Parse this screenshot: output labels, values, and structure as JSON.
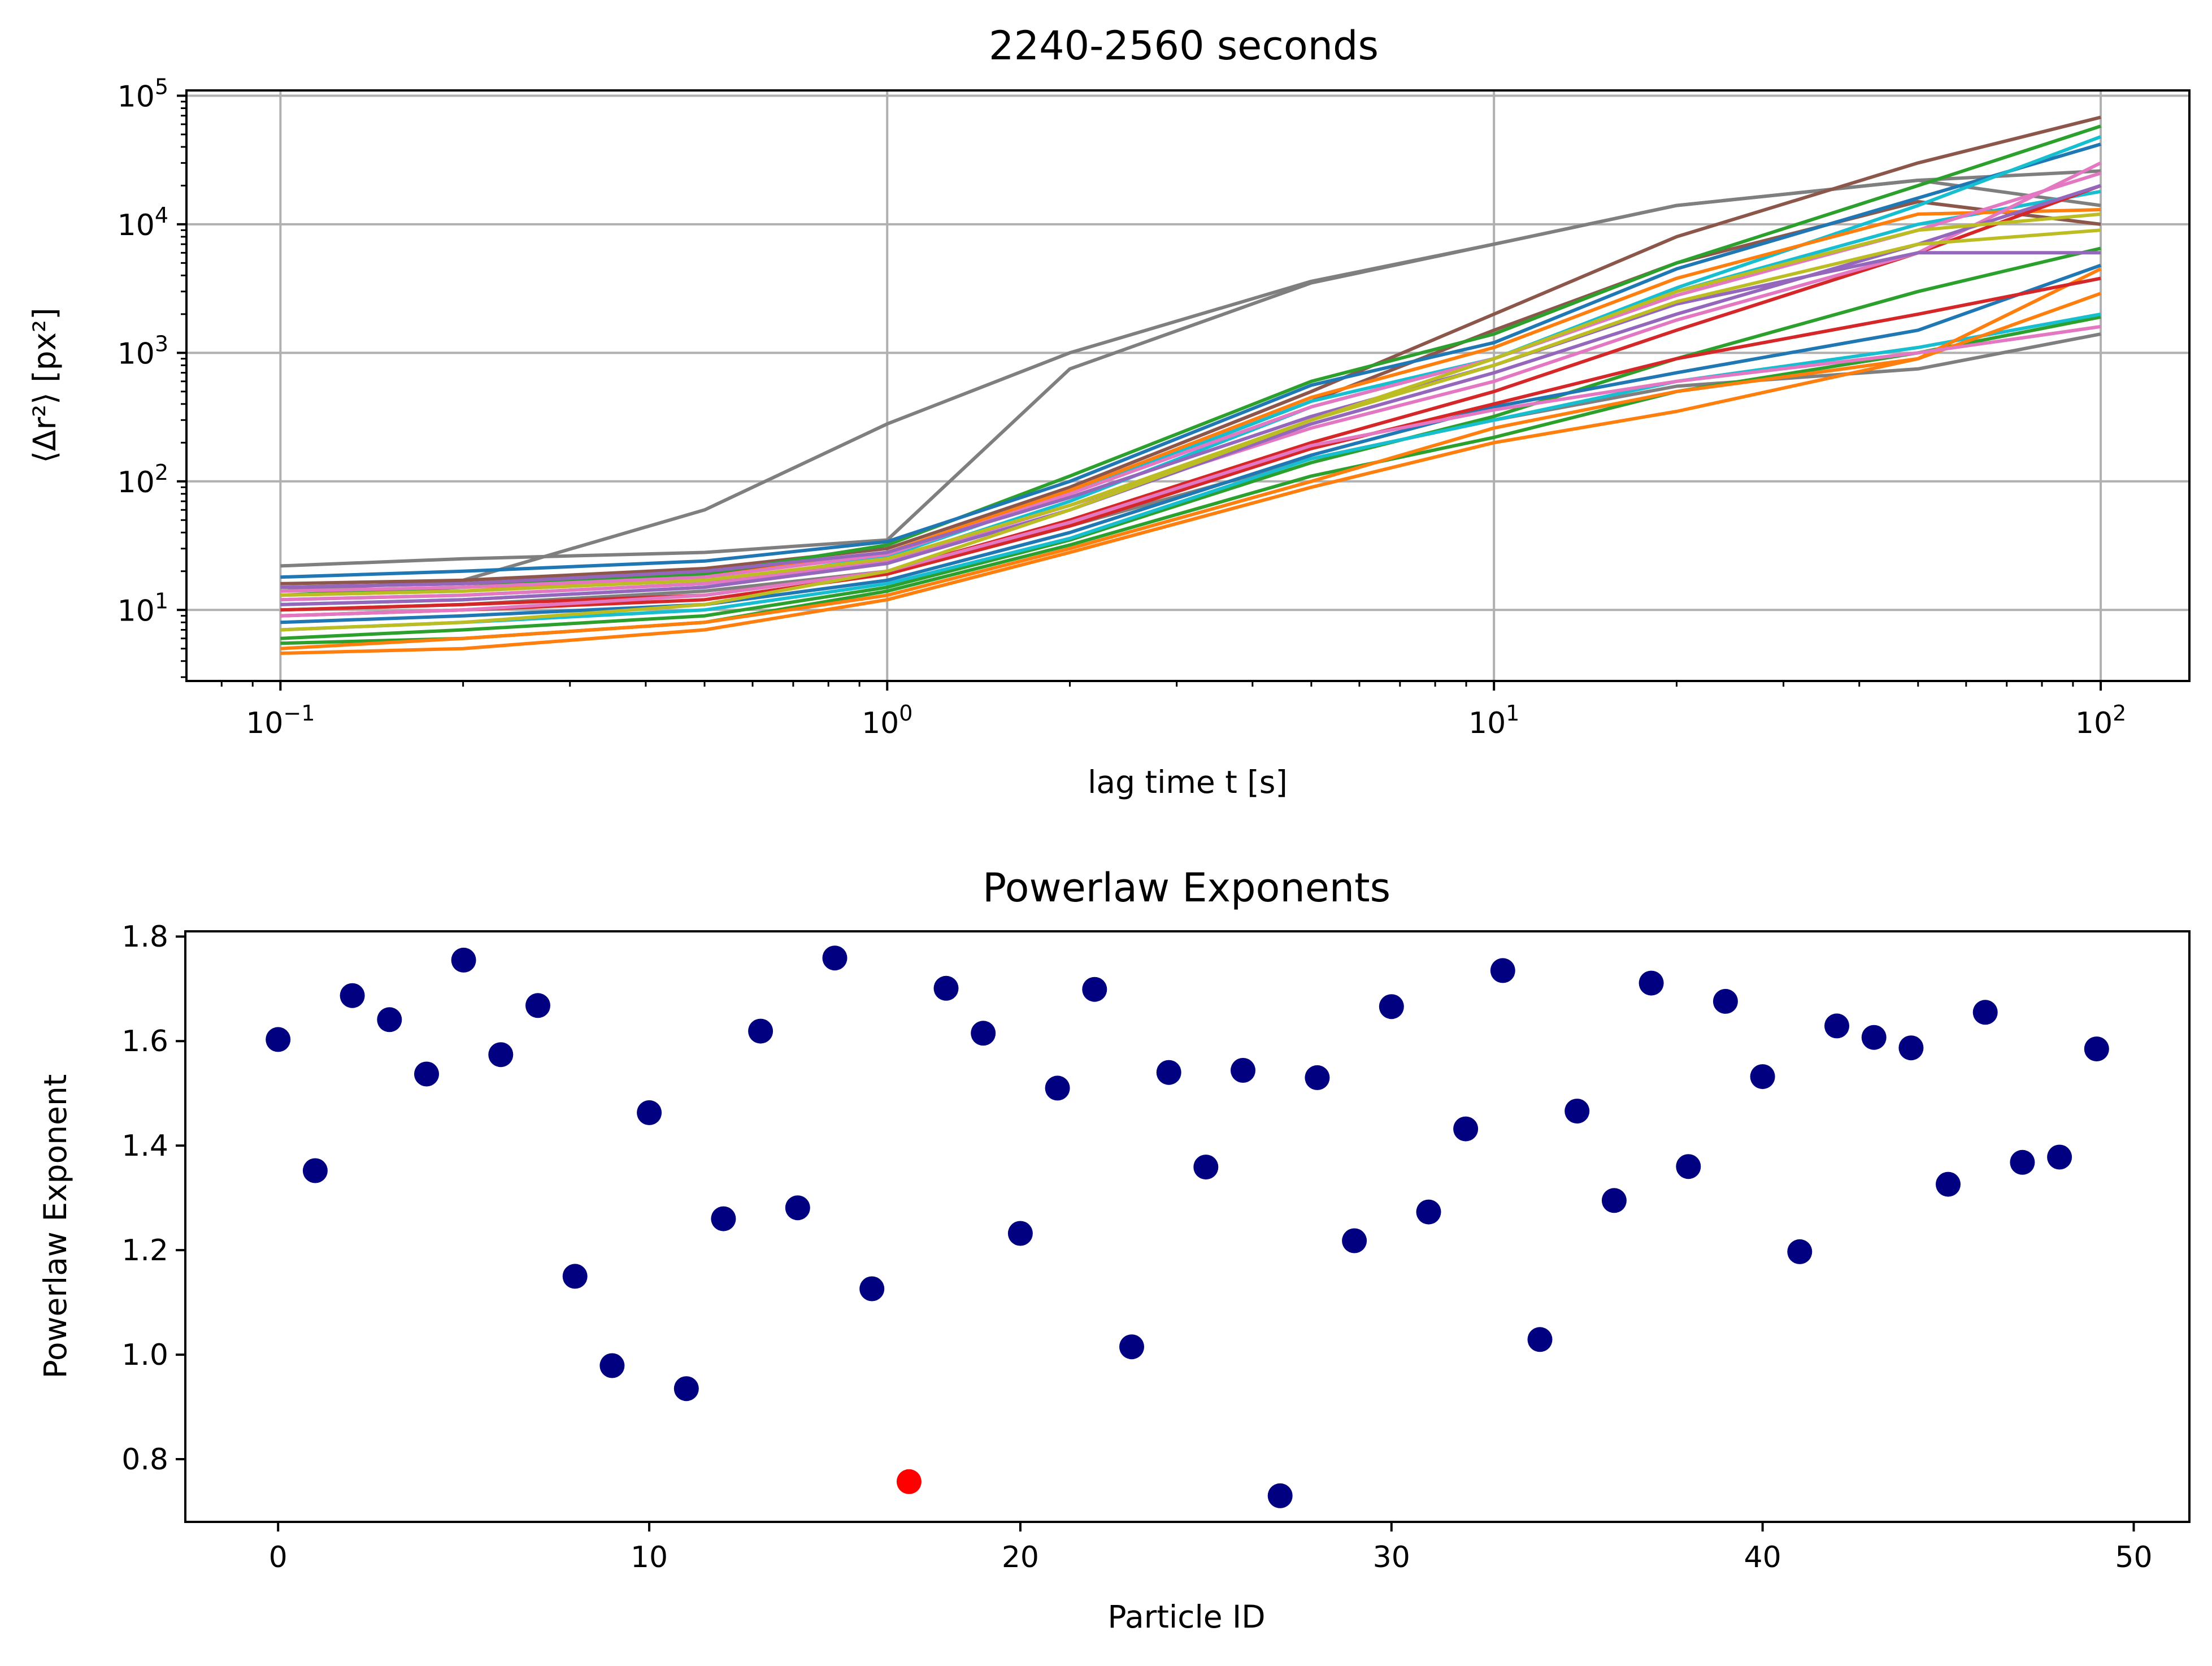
{
  "chart_data": [
    {
      "type": "line",
      "title": "2240-2560 seconds",
      "xlabel": "lag time t [s]",
      "ylabel": "⟨Δr²⟩ [px²]",
      "xscale": "log",
      "yscale": "log",
      "xlim": [
        0.07,
        140
      ],
      "ylim": [
        2.8,
        110000
      ],
      "xticks": [
        0.1,
        1,
        10,
        100
      ],
      "xtick_labels": [
        {
          "base": "10",
          "exp": "−1"
        },
        {
          "base": "10",
          "exp": "0"
        },
        {
          "base": "10",
          "exp": "1"
        },
        {
          "base": "10",
          "exp": "2"
        }
      ],
      "yticks": [
        10,
        100,
        1000,
        10000,
        100000
      ],
      "ytick_labels": [
        {
          "base": "10",
          "exp": "1"
        },
        {
          "base": "10",
          "exp": "2"
        },
        {
          "base": "10",
          "exp": "3"
        },
        {
          "base": "10",
          "exp": "4"
        },
        {
          "base": "10",
          "exp": "5"
        }
      ],
      "grid": true,
      "x": [
        0.1,
        0.2,
        0.5,
        1,
        2,
        5,
        10,
        20,
        50,
        100
      ],
      "series": [
        {
          "color": "#7f7f7f",
          "values": [
            22,
            25,
            28,
            35,
            750,
            3500,
            7000,
            14000,
            22000,
            26000
          ]
        },
        {
          "color": "#7f7f7f",
          "values": [
            14,
            17,
            60,
            280,
            1000,
            3600,
            7000,
            14000,
            22000,
            14000
          ]
        },
        {
          "color": "#7f7f7f",
          "values": [
            10,
            11,
            14,
            20,
            45,
            150,
            300,
            550,
            750,
            1400
          ]
        },
        {
          "color": "#8c564b",
          "values": [
            16,
            17,
            21,
            30,
            90,
            500,
            2000,
            8000,
            30000,
            68000
          ]
        },
        {
          "color": "#8c564b",
          "values": [
            15,
            16,
            19,
            27,
            80,
            420,
            1500,
            5000,
            15000,
            10000
          ]
        },
        {
          "color": "#2ca02c",
          "values": [
            13,
            15,
            19,
            32,
            110,
            600,
            1400,
            5000,
            20000,
            58000
          ]
        },
        {
          "color": "#2ca02c",
          "values": [
            6,
            7,
            9,
            15,
            35,
            140,
            320,
            900,
            3000,
            6500
          ]
        },
        {
          "color": "#2ca02c",
          "values": [
            5.5,
            6,
            8,
            14,
            32,
            110,
            220,
            500,
            1000,
            1900
          ]
        },
        {
          "color": "#1f77b4",
          "values": [
            18,
            20,
            24,
            34,
            100,
            560,
            1200,
            4500,
            16000,
            42000
          ]
        },
        {
          "color": "#1f77b4",
          "values": [
            8,
            9,
            11,
            17,
            40,
            160,
            380,
            700,
            1500,
            4800
          ]
        },
        {
          "color": "#17becf",
          "values": [
            12,
            13,
            16,
            26,
            80,
            420,
            900,
            3200,
            14000,
            48000
          ]
        },
        {
          "color": "#17becf",
          "values": [
            7,
            8,
            10,
            16,
            36,
            150,
            300,
            600,
            1100,
            2000
          ]
        },
        {
          "color": "#17becf",
          "values": [
            11,
            12,
            15,
            24,
            70,
            380,
            900,
            3000,
            10000,
            18000
          ]
        },
        {
          "color": "#ff7f0e",
          "values": [
            4.6,
            5,
            7,
            12,
            28,
            90,
            200,
            350,
            900,
            2900
          ]
        },
        {
          "color": "#ff7f0e",
          "values": [
            5,
            6,
            8,
            13,
            30,
            100,
            260,
            500,
            900,
            4500
          ]
        },
        {
          "color": "#ff7f0e",
          "values": [
            13,
            14,
            18,
            28,
            85,
            450,
            1100,
            3800,
            12000,
            13000
          ]
        },
        {
          "color": "#d62728",
          "values": [
            9,
            10,
            12,
            19,
            45,
            180,
            400,
            900,
            2000,
            3800
          ]
        },
        {
          "color": "#d62728",
          "values": [
            10,
            11,
            13,
            20,
            50,
            200,
            500,
            1500,
            6000,
            20000
          ]
        },
        {
          "color": "#e377c2",
          "values": [
            12,
            13,
            16,
            24,
            65,
            260,
            600,
            1800,
            6000,
            30000
          ]
        },
        {
          "color": "#e377c2",
          "values": [
            9,
            10,
            13,
            20,
            48,
            190,
            360,
            600,
            1000,
            1600
          ]
        },
        {
          "color": "#e377c2",
          "values": [
            14,
            15,
            18,
            27,
            80,
            380,
            900,
            2800,
            9000,
            25000
          ]
        },
        {
          "color": "#9467bd",
          "values": [
            15,
            16,
            20,
            28,
            75,
            320,
            800,
            2400,
            6000,
            6000
          ]
        },
        {
          "color": "#9467bd",
          "values": [
            11,
            12,
            15,
            23,
            60,
            280,
            700,
            2000,
            7000,
            20000
          ]
        },
        {
          "color": "#bcbd22",
          "values": [
            13,
            14,
            17,
            25,
            65,
            300,
            900,
            3000,
            9000,
            12000
          ]
        },
        {
          "color": "#bcbd22",
          "values": [
            7,
            8,
            11,
            20,
            60,
            300,
            800,
            2500,
            7000,
            9000
          ]
        }
      ]
    },
    {
      "type": "scatter",
      "title": "Powerlaw Exponents",
      "xlabel": "Particle ID",
      "ylabel": "Powerlaw Exponent",
      "xlim": [
        -2.5,
        51.5
      ],
      "ylim": [
        0.68,
        1.81
      ],
      "xticks": [
        0,
        10,
        20,
        30,
        40,
        50
      ],
      "yticks": [
        0.8,
        1.0,
        1.2,
        1.4,
        1.6,
        1.8
      ],
      "ytick_labels": [
        "0.8",
        "1.0",
        "1.2",
        "1.4",
        "1.6",
        "1.8"
      ],
      "grid": false,
      "point_color": "#000080",
      "highlight_color": "#ff0000",
      "highlight_index": 17,
      "x": [
        0,
        1,
        2,
        3,
        4,
        5,
        6,
        7,
        8,
        9,
        10,
        11,
        12,
        13,
        14,
        15,
        16,
        17,
        18,
        19,
        20,
        21,
        22,
        23,
        24,
        25,
        26,
        27,
        28,
        29,
        30,
        31,
        32,
        33,
        34,
        35,
        36,
        37,
        38,
        39,
        40,
        41,
        42,
        43,
        44,
        45,
        46,
        47,
        48,
        49
      ],
      "y": [
        1.603,
        1.352,
        1.687,
        1.641,
        1.537,
        1.755,
        1.574,
        1.668,
        1.15,
        0.979,
        1.463,
        0.935,
        1.26,
        1.619,
        1.281,
        1.759,
        1.126,
        0.757,
        1.701,
        1.615,
        1.232,
        1.51,
        1.699,
        1.015,
        1.54,
        1.359,
        1.544,
        0.73,
        1.53,
        1.218,
        1.666,
        1.273,
        1.432,
        1.735,
        1.029,
        1.466,
        1.295,
        1.711,
        1.36,
        1.676,
        1.532,
        1.197,
        1.629,
        1.607,
        1.587,
        1.326,
        1.655,
        1.368,
        1.378,
        1.585
      ]
    }
  ]
}
